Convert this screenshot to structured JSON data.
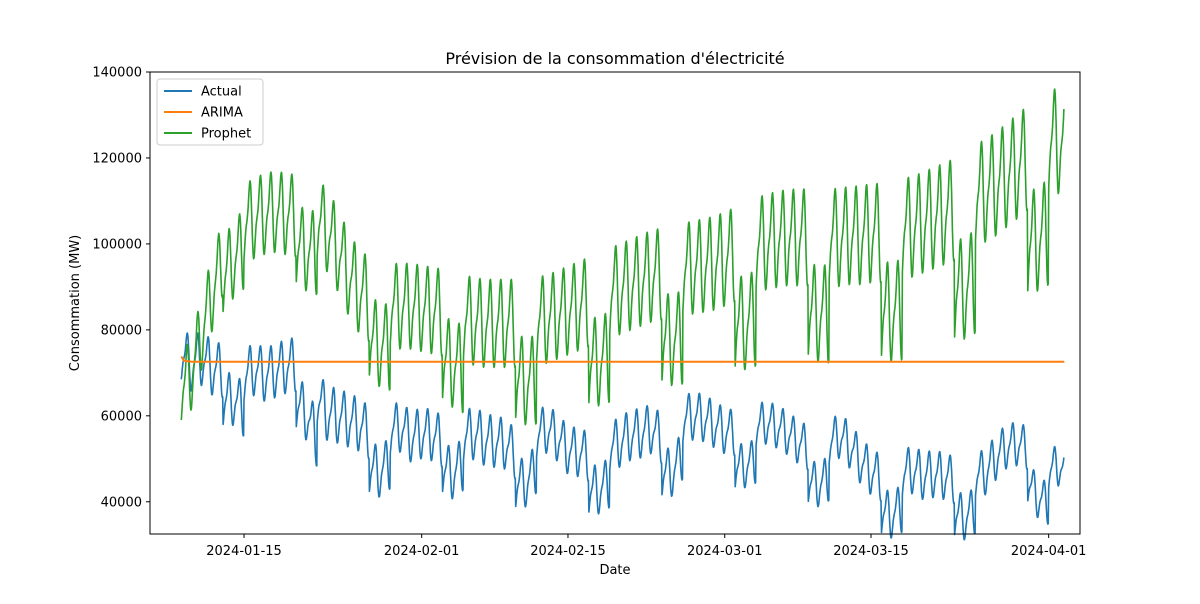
{
  "chart_data": {
    "type": "line",
    "title": "Prévision de la consommation d'électricité",
    "xlabel": "Date",
    "ylabel": "Consommation (MW)",
    "xlim": [
      "2024-01-06",
      "2024-04-04"
    ],
    "ylim": [
      32500,
      140000
    ],
    "x_ticks": [
      "2024-01-15",
      "2024-02-01",
      "2024-02-15",
      "2024-03-01",
      "2024-03-15",
      "2024-04-01"
    ],
    "y_ticks": [
      40000,
      60000,
      80000,
      100000,
      120000,
      140000
    ],
    "grid": false,
    "legend": "top-left",
    "x_range": [
      "2024-01-09",
      "2024-04-02 12:00"
    ],
    "series": [
      {
        "name": "Actual",
        "color": "#1f77b4",
        "data": [
          [
            "2024-01-09",
            74000
          ],
          [
            "2024-01-10",
            72000
          ],
          [
            "2024-01-11",
            73500
          ],
          [
            "2024-01-12",
            71000
          ],
          [
            "2024-01-13",
            70500
          ],
          [
            "2024-01-14",
            71500
          ],
          [
            "2024-01-15",
            69000
          ],
          [
            "2024-01-16",
            71000
          ],
          [
            "2024-01-17",
            69500
          ],
          [
            "2024-01-18",
            70500
          ],
          [
            "2024-01-19",
            71500
          ],
          [
            "2024-01-20",
            72000
          ],
          [
            "2024-01-21",
            70000
          ],
          [
            "2024-01-22",
            64000
          ],
          [
            "2024-01-23",
            60500
          ],
          [
            "2024-01-24",
            60000
          ],
          [
            "2024-01-25",
            59000
          ],
          [
            "2024-01-26",
            58000
          ],
          [
            "2024-01-27",
            56000
          ],
          [
            "2024-01-28",
            55000
          ],
          [
            "2024-01-29",
            56500
          ],
          [
            "2024-01-30",
            57500
          ],
          [
            "2024-01-31",
            55000
          ],
          [
            "2024-02-01",
            56000
          ],
          [
            "2024-02-02",
            55500
          ],
          [
            "2024-02-03",
            54000
          ],
          [
            "2024-02-04",
            53000
          ],
          [
            "2024-02-05",
            55000
          ],
          [
            "2024-02-06",
            56000
          ],
          [
            "2024-02-07",
            54500
          ],
          [
            "2024-02-08",
            54000
          ],
          [
            "2024-02-09",
            53500
          ],
          [
            "2024-02-10",
            51000
          ],
          [
            "2024-02-11",
            52000
          ],
          [
            "2024-02-12",
            55500
          ],
          [
            "2024-02-13",
            57000
          ],
          [
            "2024-02-14",
            55000
          ],
          [
            "2024-02-15",
            52000
          ],
          [
            "2024-02-16",
            51500
          ],
          [
            "2024-02-17",
            50500
          ],
          [
            "2024-02-18",
            51000
          ],
          [
            "2024-02-19",
            52500
          ],
          [
            "2024-02-20",
            54000
          ],
          [
            "2024-02-21",
            55500
          ],
          [
            "2024-02-22",
            56000
          ],
          [
            "2024-02-23",
            57000
          ],
          [
            "2024-02-24",
            54500
          ],
          [
            "2024-02-25",
            55000
          ],
          [
            "2024-02-26",
            59000
          ],
          [
            "2024-02-27",
            60000
          ],
          [
            "2024-02-28",
            59500
          ],
          [
            "2024-02-29",
            58000
          ],
          [
            "2024-03-01",
            56500
          ],
          [
            "2024-03-02",
            56000
          ],
          [
            "2024-03-03",
            56500
          ],
          [
            "2024-03-04",
            57500
          ],
          [
            "2024-03-05",
            58500
          ],
          [
            "2024-03-06",
            57500
          ],
          [
            "2024-03-07",
            56000
          ],
          [
            "2024-03-08",
            54000
          ],
          [
            "2024-03-09",
            52500
          ],
          [
            "2024-03-10",
            52000
          ],
          [
            "2024-03-11",
            53500
          ],
          [
            "2024-03-12",
            55500
          ],
          [
            "2024-03-13",
            53000
          ],
          [
            "2024-03-14",
            49500
          ],
          [
            "2024-03-15",
            47000
          ],
          [
            "2024-03-16",
            45500
          ],
          [
            "2024-03-17",
            45000
          ],
          [
            "2024-03-18",
            46500
          ],
          [
            "2024-03-19",
            47500
          ],
          [
            "2024-03-20",
            46000
          ],
          [
            "2024-03-21",
            46500
          ],
          [
            "2024-03-22",
            46000
          ],
          [
            "2024-03-23",
            45000
          ],
          [
            "2024-03-24",
            44500
          ],
          [
            "2024-03-25",
            46000
          ],
          [
            "2024-03-26",
            47000
          ],
          [
            "2024-03-27",
            50500
          ],
          [
            "2024-03-28",
            53000
          ],
          [
            "2024-03-29",
            53500
          ],
          [
            "2024-03-30",
            52500
          ],
          [
            "2024-03-31",
            49000
          ],
          [
            "2024-04-01",
            47500
          ],
          [
            "2024-04-02",
            48500
          ],
          [
            "2024-04-02 12:00",
            47000
          ]
        ],
        "swing": [
          [
            11000,
            6.0
          ],
          [
            10500,
            8.0
          ],
          [
            11000,
            10.0
          ],
          [
            10000,
            7.0
          ],
          [
            10500,
            6.0
          ],
          [
            9500,
            8.0
          ],
          [
            10000,
            8.0
          ],
          [
            9500,
            8.0
          ],
          [
            8500,
            8.0
          ],
          [
            9000,
            8.0
          ],
          [
            9500,
            8.0
          ],
          [
            9000,
            8.0
          ],
          [
            8000,
            8.0
          ]
        ]
      },
      {
        "name": "ARIMA",
        "color": "#ff7f0e",
        "data": [
          [
            "2024-01-09",
            73800
          ],
          [
            "2024-01-09 06:00",
            72800
          ],
          [
            "2024-01-10",
            72600
          ],
          [
            "2024-04-02 12:00",
            72600
          ]
        ]
      },
      {
        "name": "Prophet",
        "color": "#2ca02c",
        "data": [
          [
            "2024-01-09",
            66000
          ],
          [
            "2024-01-10",
            70000
          ],
          [
            "2024-01-11",
            80000
          ],
          [
            "2024-01-12",
            89000
          ],
          [
            "2024-01-13",
            97000
          ],
          [
            "2024-01-14",
            102000
          ],
          [
            "2024-01-15",
            104500
          ],
          [
            "2024-01-16",
            106000
          ],
          [
            "2024-01-17",
            107000
          ],
          [
            "2024-01-18",
            107500
          ],
          [
            "2024-01-19",
            107000
          ],
          [
            "2024-01-20",
            106500
          ],
          [
            "2024-01-21",
            106000
          ],
          [
            "2024-01-22",
            105500
          ],
          [
            "2024-01-23",
            103000
          ],
          [
            "2024-01-24",
            98500
          ],
          [
            "2024-01-25",
            93000
          ],
          [
            "2024-01-26",
            89000
          ],
          [
            "2024-01-27",
            87000
          ],
          [
            "2024-01-28",
            86000
          ],
          [
            "2024-01-29",
            85500
          ],
          [
            "2024-01-30",
            85500
          ],
          [
            "2024-01-31",
            85500
          ],
          [
            "2024-02-01",
            85000
          ],
          [
            "2024-02-02",
            84500
          ],
          [
            "2024-02-03",
            84000
          ],
          [
            "2024-02-04",
            83500
          ],
          [
            "2024-02-05",
            82500
          ],
          [
            "2024-02-06",
            82000
          ],
          [
            "2024-02-07",
            81500
          ],
          [
            "2024-02-08",
            81500
          ],
          [
            "2024-02-09",
            81500
          ],
          [
            "2024-02-10",
            81500
          ],
          [
            "2024-02-11",
            81500
          ],
          [
            "2024-02-12",
            82000
          ],
          [
            "2024-02-13",
            82500
          ],
          [
            "2024-02-14",
            83500
          ],
          [
            "2024-02-15",
            84500
          ],
          [
            "2024-02-16",
            85500
          ],
          [
            "2024-02-17",
            86500
          ],
          [
            "2024-02-18",
            87500
          ],
          [
            "2024-02-19",
            88500
          ],
          [
            "2024-02-20",
            89500
          ],
          [
            "2024-02-21",
            90500
          ],
          [
            "2024-02-22",
            91500
          ],
          [
            "2024-02-23",
            92500
          ],
          [
            "2024-02-24",
            93000
          ],
          [
            "2024-02-25",
            93500
          ],
          [
            "2024-02-26",
            94000
          ],
          [
            "2024-02-27",
            94500
          ],
          [
            "2024-02-28",
            95000
          ],
          [
            "2024-02-29",
            95500
          ],
          [
            "2024-03-01",
            96500
          ],
          [
            "2024-03-02",
            97500
          ],
          [
            "2024-03-03",
            98500
          ],
          [
            "2024-03-04",
            99500
          ],
          [
            "2024-03-05",
            100500
          ],
          [
            "2024-03-06",
            101000
          ],
          [
            "2024-03-07",
            101500
          ],
          [
            "2024-03-08",
            101500
          ],
          [
            "2024-03-09",
            101500
          ],
          [
            "2024-03-10",
            101500
          ],
          [
            "2024-03-11",
            101500
          ],
          [
            "2024-03-12",
            101500
          ],
          [
            "2024-03-13",
            102000
          ],
          [
            "2024-03-14",
            102000
          ],
          [
            "2024-03-15",
            102500
          ],
          [
            "2024-03-16",
            102500
          ],
          [
            "2024-03-17",
            103000
          ],
          [
            "2024-03-18",
            103500
          ],
          [
            "2024-03-19",
            104000
          ],
          [
            "2024-03-20",
            105000
          ],
          [
            "2024-03-21",
            106000
          ],
          [
            "2024-03-22",
            107000
          ],
          [
            "2024-03-23",
            108000
          ],
          [
            "2024-03-24",
            109500
          ],
          [
            "2024-03-25",
            111000
          ],
          [
            "2024-03-26",
            112500
          ],
          [
            "2024-03-27",
            114000
          ],
          [
            "2024-03-28",
            116000
          ],
          [
            "2024-03-29",
            118000
          ],
          [
            "2024-03-30",
            120000
          ],
          [
            "2024-03-31",
            122000
          ],
          [
            "2024-04-01",
            123500
          ],
          [
            "2024-04-02",
            124000
          ],
          [
            "2024-04-02 12:00",
            123000
          ]
        ],
        "swing": [
          [
            14000,
            4.0
          ],
          [
            16000,
            6.0
          ],
          [
            16500,
            8.0
          ],
          [
            17000,
            10.0
          ],
          [
            17500,
            12.0
          ],
          [
            17500,
            14.0
          ],
          [
            18000,
            15.0
          ],
          [
            18500,
            16.0
          ],
          [
            19000,
            17.0
          ],
          [
            19500,
            18.0
          ],
          [
            20000,
            19.0
          ],
          [
            20500,
            20.0
          ],
          [
            21000,
            21.0
          ]
        ]
      }
    ]
  }
}
